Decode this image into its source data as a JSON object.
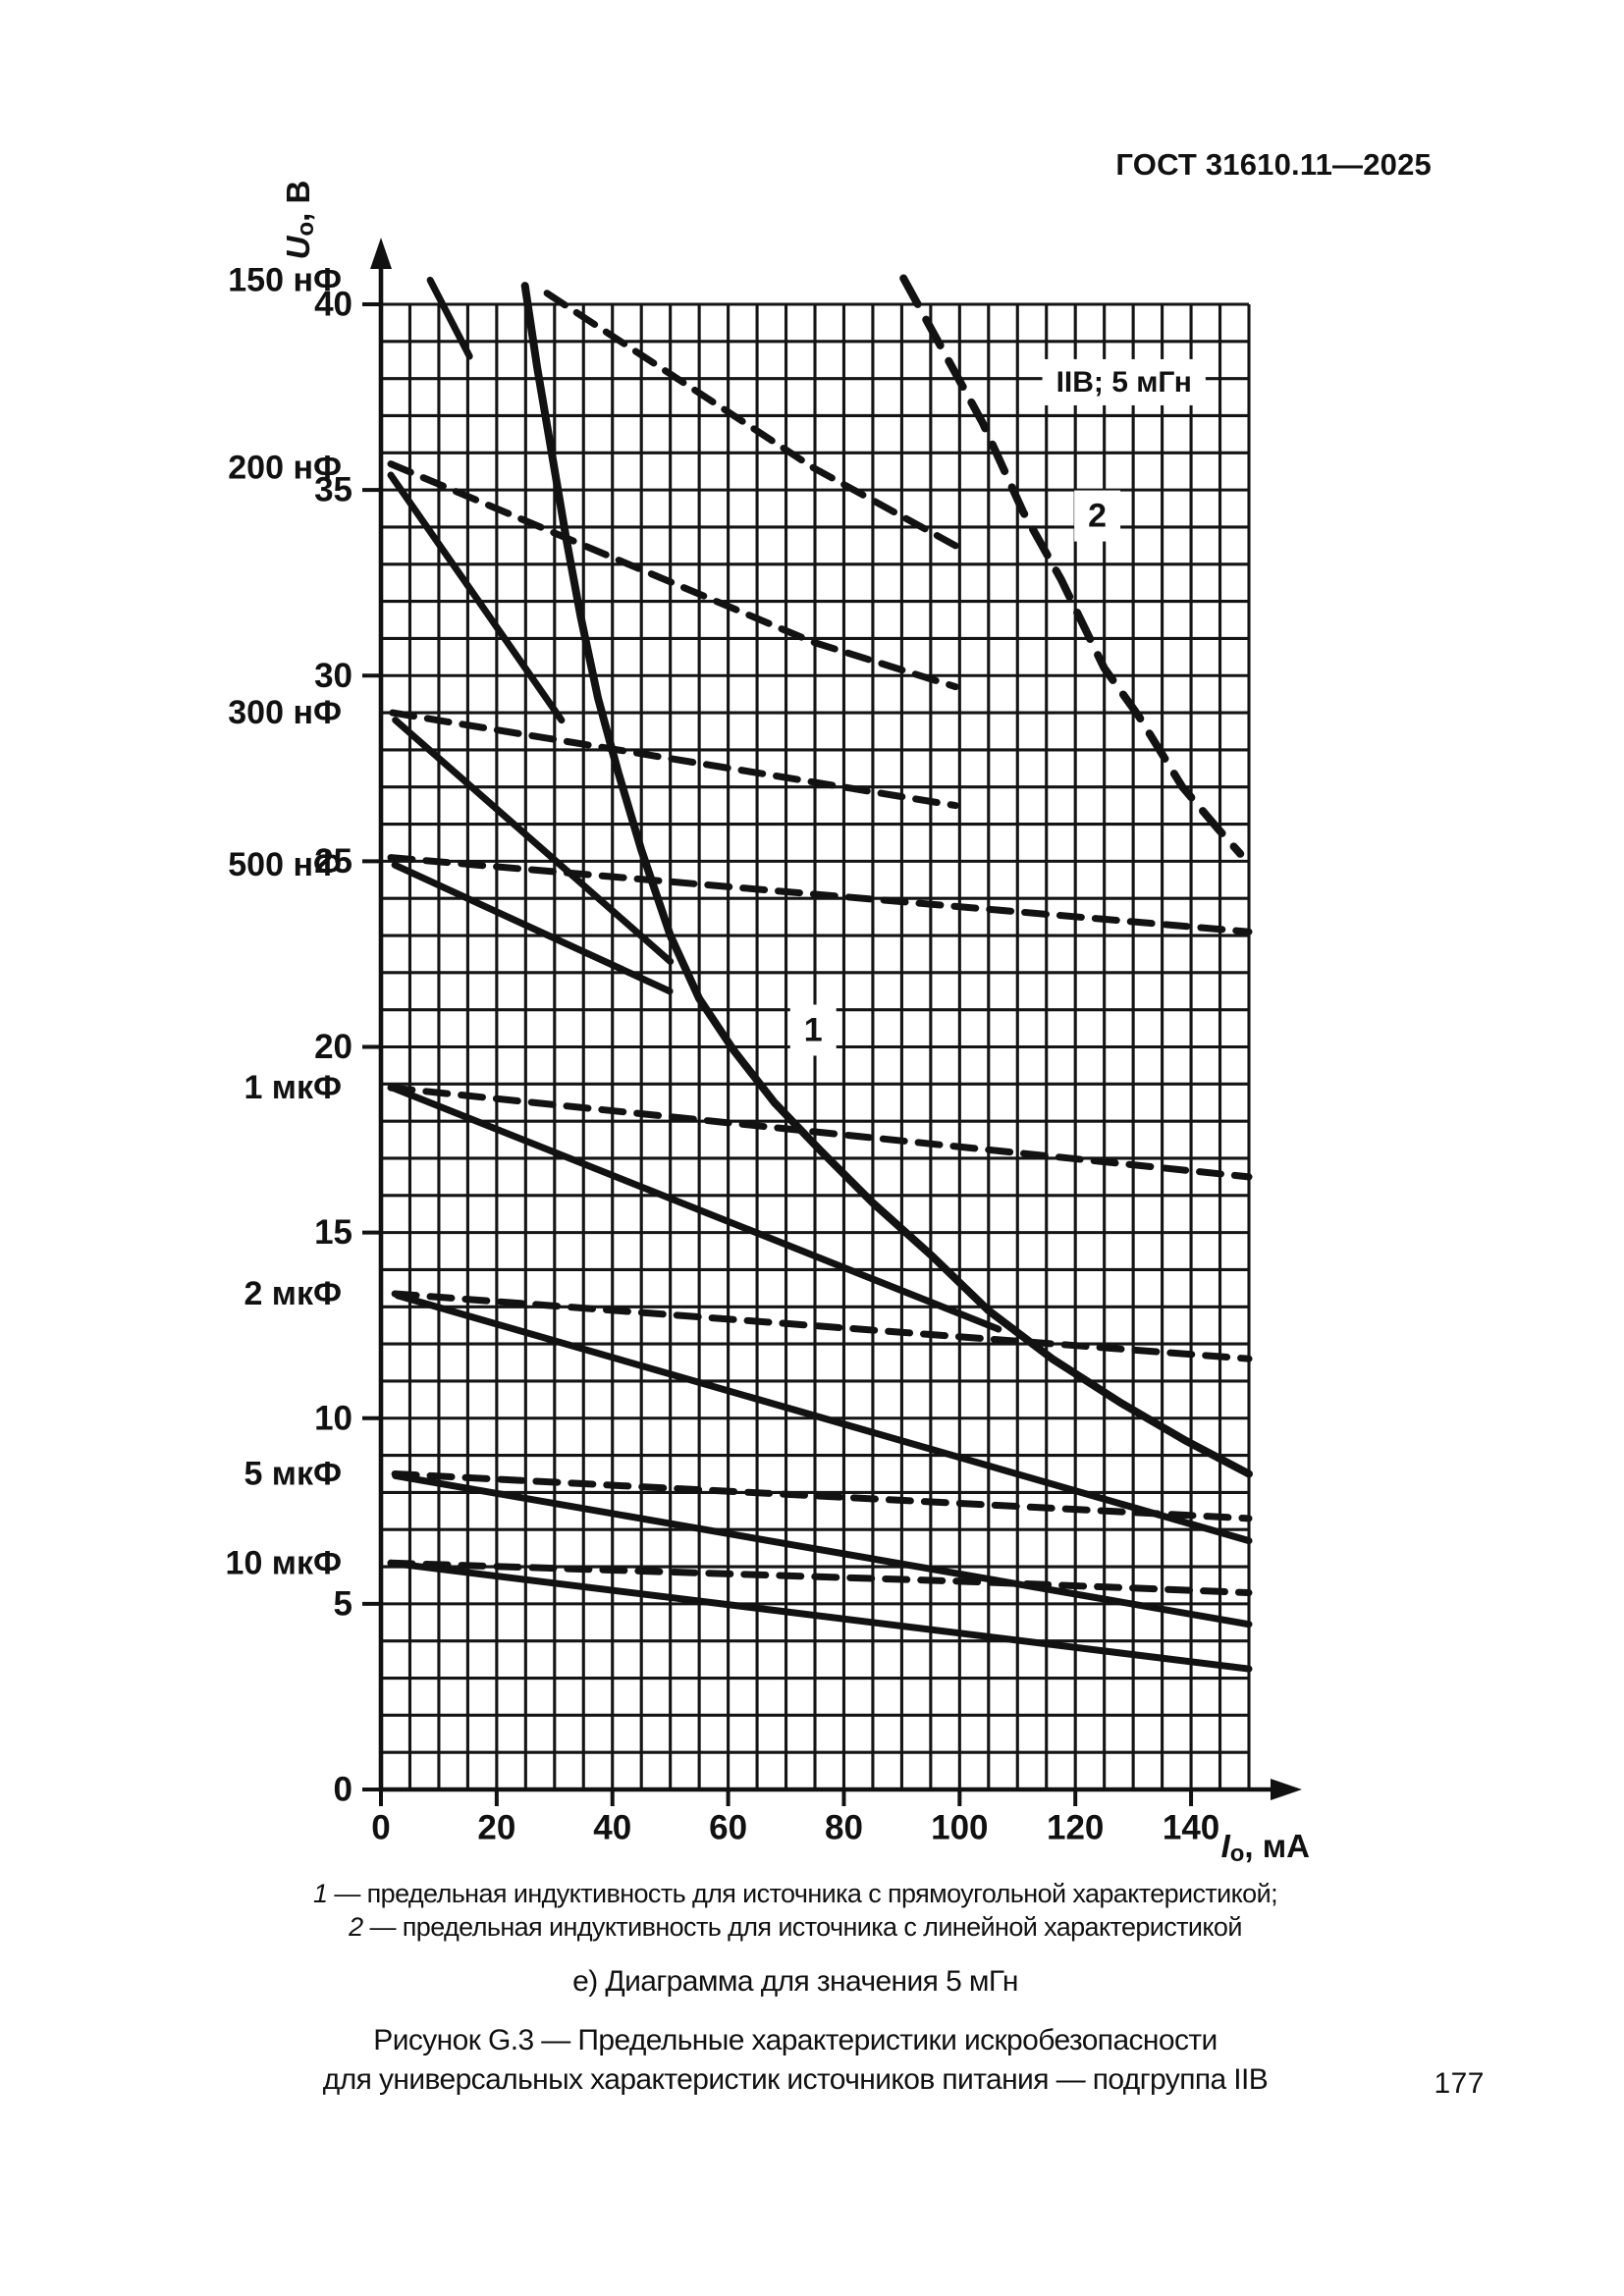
{
  "page": {
    "header": "ГОСТ 31610.11—2025",
    "page_number": "177"
  },
  "chart_data": {
    "type": "line",
    "title_annotation": "IIB; 5 мГн",
    "xlabel": {
      "base": "I",
      "sub": "о",
      "rest": ", мА"
    },
    "ylabel": {
      "base": "U",
      "sub": "о",
      "rest": ", В"
    },
    "xlim": [
      0,
      150
    ],
    "ylim": [
      0,
      40
    ],
    "x_ticks": [
      0,
      20,
      40,
      60,
      80,
      100,
      120,
      140
    ],
    "y_ticks": [
      0,
      5,
      10,
      15,
      20,
      25,
      30,
      35,
      40
    ],
    "grid_step_x": 5,
    "grid_step_y": 1,
    "grid": "on",
    "legend_position": "none",
    "side_labels": [
      {
        "text": "150 нФ",
        "v": 40.65
      },
      {
        "text": "200 нФ",
        "v": 35.6
      },
      {
        "text": "300 нФ",
        "v": 29.0
      },
      {
        "text": "500 нФ",
        "v": 24.9
      },
      {
        "text": "1 мкФ",
        "v": 18.9
      },
      {
        "text": "2 мкФ",
        "v": 13.35
      },
      {
        "text": "5 мкФ",
        "v": 8.5
      },
      {
        "text": "10 мкФ",
        "v": 6.1
      }
    ],
    "annotations": [
      {
        "id": "subgroup-label",
        "text": "IIB; 5 мГн",
        "x": 128.4,
        "y": 37.9
      },
      {
        "id": "curve-2-label",
        "text": "2",
        "x": 123.8,
        "y": 34.3
      },
      {
        "id": "curve-1-label",
        "text": "1",
        "x": 74.7,
        "y": 20.45
      }
    ],
    "series": [
      {
        "id": "150nF-solid",
        "name": "150 нФ (прямоугольная)",
        "style": "solid",
        "points": [
          [
            8.5,
            40.65
          ],
          [
            15.3,
            38.6
          ]
        ]
      },
      {
        "id": "200nF-solid",
        "name": "200 нФ (прямоугольная)",
        "style": "solid",
        "points": [
          [
            1.7,
            35.4
          ],
          [
            31.2,
            28.8
          ]
        ]
      },
      {
        "id": "300nF-solid",
        "name": "300 нФ (прямоугольная)",
        "style": "solid",
        "points": [
          [
            2.5,
            28.8
          ],
          [
            50.0,
            22.3
          ]
        ]
      },
      {
        "id": "500nF-solid",
        "name": "500 нФ (прямоугольная)",
        "style": "solid",
        "points": [
          [
            2.4,
            24.9
          ],
          [
            49.9,
            21.5
          ]
        ]
      },
      {
        "id": "1uF-solid",
        "name": "1 мкФ (прямоугольная)",
        "style": "solid",
        "points": [
          [
            2.0,
            18.9
          ],
          [
            106.7,
            12.4
          ]
        ]
      },
      {
        "id": "2uF-solid",
        "name": "2 мкФ (прямоугольная)",
        "style": "solid",
        "points": [
          [
            2.9,
            13.3
          ],
          [
            150,
            6.7
          ]
        ]
      },
      {
        "id": "5uF-solid",
        "name": "5 мкФ (прямоугольная)",
        "style": "solid",
        "points": [
          [
            2.5,
            8.45
          ],
          [
            150,
            4.45
          ]
        ]
      },
      {
        "id": "10uF-solid",
        "name": "10 мкФ (прямоугольная)",
        "style": "solid",
        "points": [
          [
            1.7,
            6.1
          ],
          [
            150,
            3.25
          ]
        ]
      },
      {
        "id": "150nF-dashed",
        "name": "150 нФ (линейная)",
        "style": "dashed",
        "points": [
          [
            28.7,
            40.3
          ],
          [
            74.7,
            35.6
          ],
          [
            99.3,
            33.5
          ]
        ]
      },
      {
        "id": "200nF-dashed",
        "name": "200 нФ (линейная)",
        "style": "dashed",
        "points": [
          [
            1.7,
            35.7
          ],
          [
            74.7,
            30.9
          ],
          [
            99.3,
            29.7
          ]
        ]
      },
      {
        "id": "300nF-dashed",
        "name": "300 нФ (линейная)",
        "style": "dashed",
        "points": [
          [
            2.0,
            29.0
          ],
          [
            99.3,
            26.5
          ]
        ]
      },
      {
        "id": "500nF-dashed",
        "name": "500 нФ (линейная)",
        "style": "dashed",
        "points": [
          [
            1.7,
            25.1
          ],
          [
            150,
            23.1
          ]
        ]
      },
      {
        "id": "1uF-dashed",
        "name": "1 мкФ (линейная)",
        "style": "dashed",
        "points": [
          [
            1.7,
            18.9
          ],
          [
            150,
            16.5
          ]
        ]
      },
      {
        "id": "2uF-dashed",
        "name": "2 мкФ (линейная)",
        "style": "dashed",
        "points": [
          [
            2.4,
            13.35
          ],
          [
            150,
            11.6
          ]
        ]
      },
      {
        "id": "5uF-dashed",
        "name": "5 мкФ (линейная)",
        "style": "dashed",
        "points": [
          [
            2.4,
            8.5
          ],
          [
            150,
            7.3
          ]
        ]
      },
      {
        "id": "10uF-dashed",
        "name": "10 мкФ (линейная)",
        "style": "dashed",
        "points": [
          [
            1.7,
            6.1
          ],
          [
            101.6,
            5.6
          ],
          [
            150,
            5.3
          ]
        ]
      },
      {
        "id": "limit-1-rectangular",
        "name": "1 — предельная индуктивность (прямоугольная характеристика)",
        "style": "solid",
        "role": "limit",
        "points": [
          [
            24.9,
            40.5
          ],
          [
            27,
            38.3
          ],
          [
            29.5,
            36.0
          ],
          [
            32,
            33.7
          ],
          [
            34.5,
            31.6
          ],
          [
            37.5,
            29.4
          ],
          [
            41,
            27.4
          ],
          [
            45,
            25.3
          ],
          [
            50,
            23.0
          ],
          [
            55,
            21.3
          ],
          [
            61,
            19.9
          ],
          [
            68,
            18.5
          ],
          [
            76,
            17.2
          ],
          [
            85,
            15.8
          ],
          [
            95,
            14.4
          ],
          [
            105,
            12.9
          ],
          [
            116,
            11.6
          ],
          [
            128,
            10.4
          ],
          [
            139,
            9.4
          ],
          [
            150,
            8.5
          ]
        ]
      },
      {
        "id": "limit-2-linear",
        "name": "2 — предельная индуктивность (линейная характеристика)",
        "style": "dashed",
        "role": "limit",
        "points": [
          [
            90.3,
            40.7
          ],
          [
            104,
            36.8
          ],
          [
            111,
            34.4
          ],
          [
            117.5,
            32.6
          ],
          [
            125,
            30.2
          ],
          [
            131,
            28.9
          ],
          [
            138.5,
            27.0
          ],
          [
            144.5,
            25.9
          ],
          [
            148.5,
            25.2
          ]
        ]
      }
    ]
  },
  "caption": {
    "legend_items": [
      {
        "num": "1",
        "text": "— предельная индуктивность для источника с прямоугольной характеристикой;"
      },
      {
        "num": "2",
        "text": "— предельная индуктивность для источника с линейной характеристикой"
      }
    ],
    "subtitle": "е) Диаграмма для значения 5 мГн",
    "figure_caption_line1": "Рисунок G.3 — Предельные характеристики искробезопасности",
    "figure_caption_line2": "для универсальных характеристик источников питания — подгруппа IIB"
  }
}
